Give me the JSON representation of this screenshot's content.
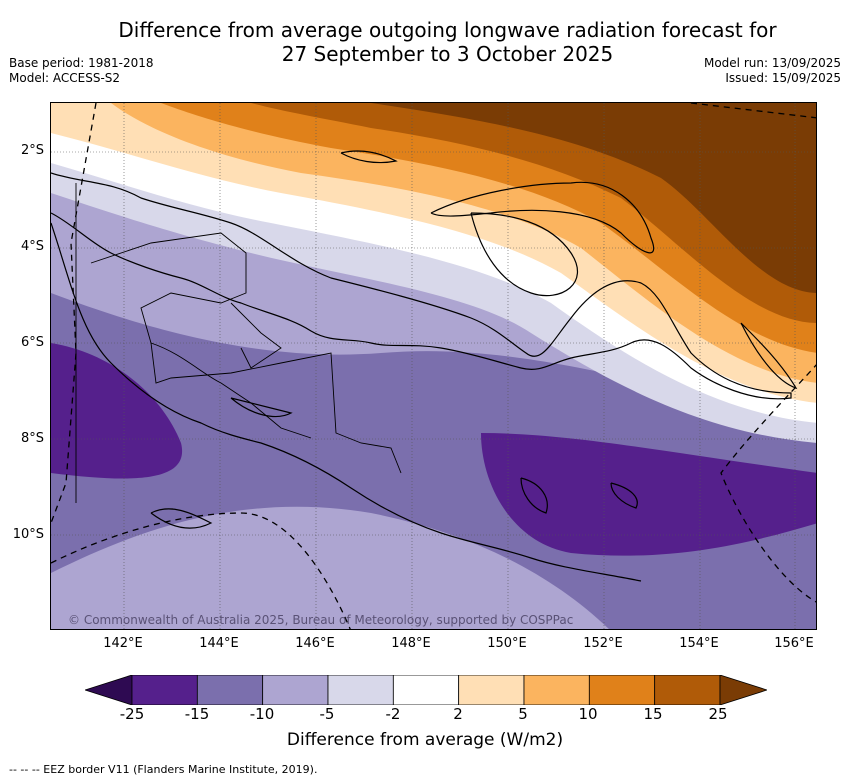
{
  "title_line1": "Difference from average outgoing longwave radiation forecast for",
  "title_line2": "27 September to 3 October 2025",
  "meta_left": {
    "base_period": "Base period: 1981-2018",
    "model": "Model: ACCESS-S2"
  },
  "meta_right": {
    "model_run": "Model run: 13/09/2025",
    "issued": "Issued: 15/09/2025"
  },
  "lat_labels": [
    "2°S",
    "4°S",
    "6°S",
    "8°S",
    "10°S"
  ],
  "lon_labels": [
    "142°E",
    "144°E",
    "146°E",
    "148°E",
    "150°E",
    "152°E",
    "154°E",
    "156°E"
  ],
  "copyright": "© Commonwealth of Australia 2025, Bureau of Meteorology, supported by COSPPac",
  "colorbar": {
    "ticks": [
      "-25",
      "-15",
      "-10",
      "-5",
      "-2",
      "2",
      "5",
      "10",
      "15",
      "25"
    ],
    "colors": [
      "#2e0a52",
      "#55208c",
      "#7b6fad",
      "#ada5d1",
      "#d8d8ea",
      "#ffffff",
      "#ffdfb5",
      "#fbb45f",
      "#e0811a",
      "#b05b08",
      "#7a3c05"
    ],
    "label": "Difference from average (W/m2)"
  },
  "eez_note": "--  --  -- EEZ border V11 (Flanders Marine Institute, 2019)."
}
